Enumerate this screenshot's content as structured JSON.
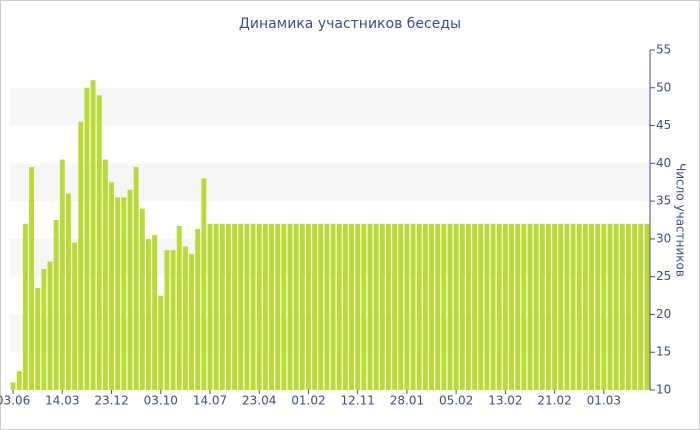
{
  "chart_data": {
    "type": "bar",
    "title": "Динамика участников беседы",
    "y_label": "Число участников",
    "categories": [
      "03.06",
      null,
      null,
      null,
      null,
      null,
      null,
      null,
      "14.03",
      null,
      null,
      null,
      null,
      null,
      null,
      null,
      "23.12",
      null,
      null,
      null,
      null,
      null,
      null,
      null,
      "03.10",
      null,
      null,
      null,
      null,
      null,
      null,
      null,
      "14.07",
      null,
      null,
      null,
      null,
      null,
      null,
      null,
      "23.04",
      null,
      null,
      null,
      null,
      null,
      null,
      null,
      "01.02",
      null,
      null,
      null,
      null,
      null,
      null,
      null,
      "12.11",
      null,
      null,
      null,
      null,
      null,
      null,
      null,
      "28.01",
      null,
      null,
      null,
      null,
      null,
      null,
      null,
      "05.02",
      null,
      null,
      null,
      null,
      null,
      null,
      null,
      "13.02",
      null,
      null,
      null,
      null,
      null,
      null,
      null,
      "21.02",
      null,
      null,
      null,
      null,
      null,
      null,
      null,
      "01.03",
      null,
      null,
      null,
      null,
      null,
      null,
      null
    ],
    "values": [
      11,
      12.5,
      32,
      39.5,
      23.5,
      26,
      27,
      32.5,
      40.5,
      36,
      29.5,
      45.5,
      50,
      51,
      49,
      40.5,
      37.5,
      35.5,
      35.5,
      36.5,
      39.5,
      34,
      30,
      30.5,
      22.5,
      28.5,
      28.5,
      31.7,
      29,
      28,
      31.3,
      38,
      32,
      32,
      32,
      32,
      32,
      32,
      32,
      32,
      32,
      32,
      32,
      32,
      32,
      32,
      32,
      32,
      32,
      32,
      32,
      32,
      32,
      32,
      32,
      32,
      32,
      32,
      32,
      32,
      32,
      32,
      32,
      32,
      32,
      32,
      32,
      32,
      32,
      32,
      32,
      32,
      32,
      32,
      32,
      32,
      32,
      32,
      32,
      32,
      32,
      32,
      32,
      32,
      32,
      32,
      32,
      32,
      32,
      32,
      32,
      32,
      32,
      32,
      32,
      32,
      32,
      32,
      32,
      32,
      32,
      32,
      32,
      32
    ],
    "color": "#b8dc34",
    "ylim": [
      10,
      55
    ],
    "yticks": [
      10,
      15,
      20,
      25,
      30,
      35,
      40,
      45,
      50,
      55
    ],
    "y_axis_side": "right",
    "alternate_bands": true,
    "band_color": "#f6f6f6"
  }
}
